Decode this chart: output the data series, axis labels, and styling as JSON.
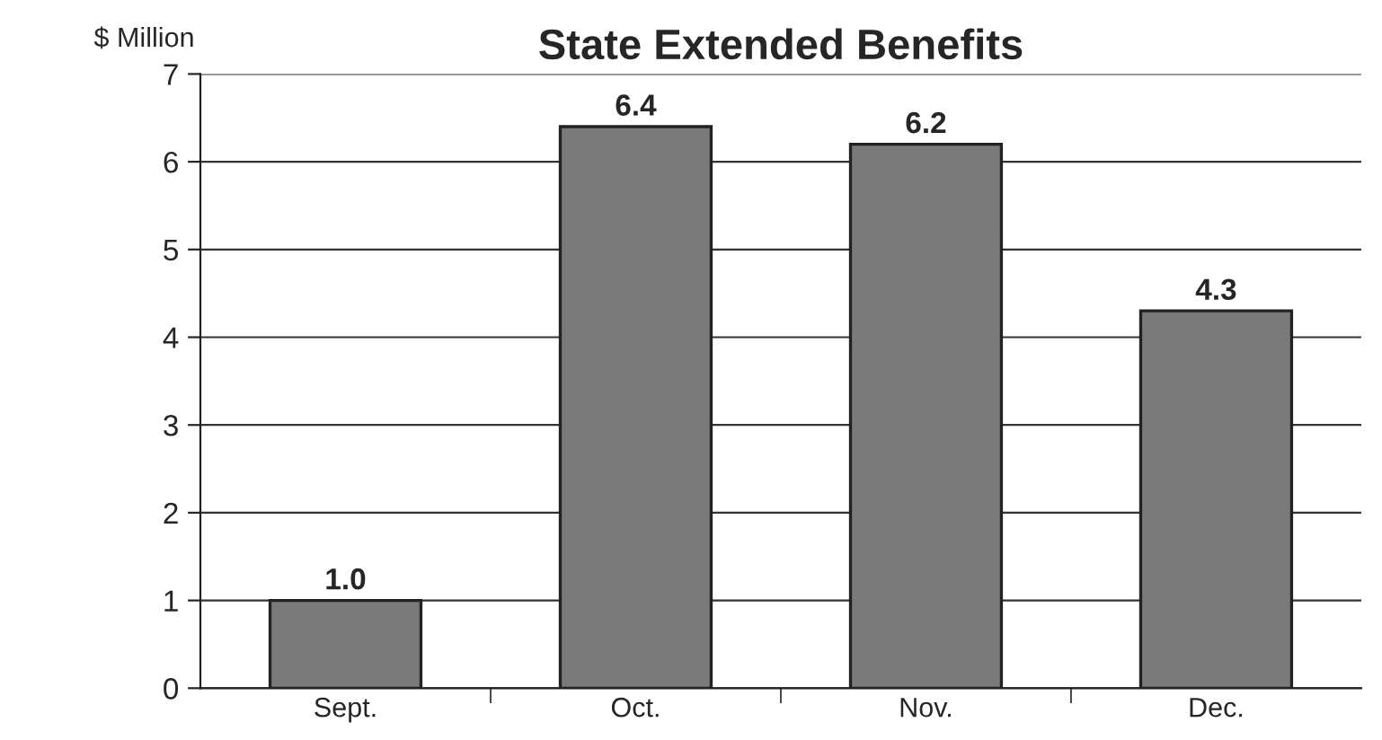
{
  "chart_data": {
    "type": "bar",
    "title": "State Extended Benefits",
    "ylabel": "$ Million",
    "categories": [
      "Sept.",
      "Oct.",
      "Nov.",
      "Dec."
    ],
    "values": [
      1.0,
      6.4,
      6.2,
      4.3
    ],
    "color": "#7a7a7a",
    "value_labels": [
      "1.0",
      "6.4",
      "6.2",
      "4.3"
    ],
    "ylim": [
      0,
      7
    ],
    "yticks": [
      0,
      1,
      2,
      3,
      4,
      5,
      6,
      7
    ],
    "grid": "y"
  }
}
